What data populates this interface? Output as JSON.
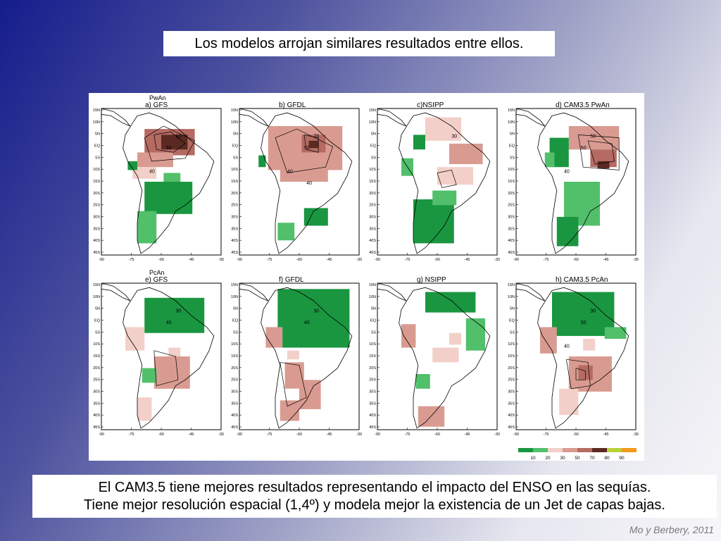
{
  "slide": {
    "title": "Los modelos arrojan similares resultados entre ellos.",
    "caption_line1": "El CAM3.5 tiene mejores resultados representando el impacto del ENSO en las sequías.",
    "caption_line2": "Tiene mejor resolución espacial (1,4º) y modela mejor la existencia de un Jet de capas bajas.",
    "credit": "Mo y Berbery, 2011"
  },
  "figure": {
    "row_labels": [
      "PwAn",
      "PcAn"
    ],
    "panels": [
      {
        "id": "a",
        "label": "a) GFS",
        "row": 0,
        "col": 0,
        "contours": [
          "60",
          "50",
          "40"
        ]
      },
      {
        "id": "b",
        "label": "b)  GFDL",
        "row": 0,
        "col": 1,
        "contours": [
          "70",
          "50",
          "40",
          "40"
        ]
      },
      {
        "id": "c",
        "label": "c)NSIPP",
        "row": 0,
        "col": 2,
        "contours": [
          "30"
        ]
      },
      {
        "id": "d",
        "label": "d) CAM3.5  PwAn",
        "row": 0,
        "col": 3,
        "contours": [
          "50",
          "50",
          "40"
        ]
      },
      {
        "id": "e",
        "label": "e) GFS",
        "row": 1,
        "col": 0,
        "contours": [
          "30",
          "40"
        ]
      },
      {
        "id": "f",
        "label": "f)  GFDL",
        "row": 1,
        "col": 1,
        "contours": [
          "30",
          "40"
        ]
      },
      {
        "id": "g",
        "label": "g)  NSIPP",
        "row": 1,
        "col": 2,
        "contours": []
      },
      {
        "id": "h",
        "label": "h)  CAM3.5  PcAn",
        "row": 1,
        "col": 3,
        "contours": [
          "30",
          "50",
          "40"
        ]
      }
    ],
    "lat_ticks": [
      "15N",
      "10N",
      "5N",
      "EQ",
      "5S",
      "10S",
      "15S",
      "20S",
      "25S",
      "30S",
      "35S",
      "40S",
      "45S"
    ],
    "lon_ticks": [
      "-90",
      "-75",
      "-60",
      "-45",
      "-30"
    ],
    "colorbar": {
      "colors": [
        "#1a9641",
        "#52bf6b",
        "#f2d0c9",
        "#d99b91",
        "#b56b62",
        "#5a2a22",
        "#b7d23a",
        "#f29a1a"
      ],
      "labels": [
        "10",
        "20",
        "30",
        "50",
        "70",
        "80",
        "90"
      ]
    }
  }
}
